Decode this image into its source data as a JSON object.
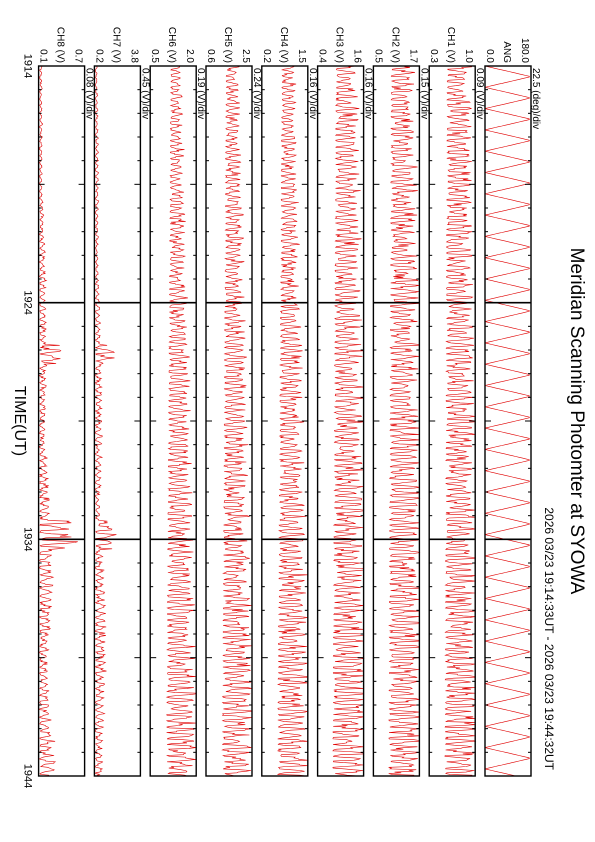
{
  "chart_data": {
    "type": "line",
    "title": "Meridian Scanning Photomter at SYOWA",
    "time_range": "2026 03/23 19:14:33UT - 2026 03/23 19:44:32UT",
    "xlabel": "TIME(UT)",
    "x_ticks": [
      "1914",
      "1924",
      "1934",
      "1944"
    ],
    "line_color": "#e00000",
    "grid_markers": true,
    "panels": [
      {
        "id": "ang",
        "scale_label": "22.5 (deg)/div",
        "unit": "ANG",
        "ylim": [
          0.0,
          180.0
        ],
        "ymin_label": "0.0",
        "ymax_label": "180.0",
        "min": 0.0,
        "max": 180.0,
        "amp_start": 1.0,
        "amp_end": 1.0,
        "period_min": 0.9,
        "burst": false
      },
      {
        "id": "ch1",
        "scale_label": "0.09 (V)/div",
        "unit": "CH1 (V)",
        "ylim": [
          0.3,
          1.0
        ],
        "ymin_label": "0.3",
        "ymax_label": "1.0",
        "min": 0.3,
        "max": 1.0,
        "amp_start": 0.55,
        "amp_end": 0.8,
        "period_min": 0.25,
        "burst": false
      },
      {
        "id": "ch2",
        "scale_label": "0.15 (V)/div",
        "unit": "CH2 (V)",
        "ylim": [
          0.5,
          1.7
        ],
        "ymin_label": "0.5",
        "ymax_label": "1.7",
        "min": 0.5,
        "max": 1.7,
        "amp_start": 0.55,
        "amp_end": 0.85,
        "period_min": 0.25,
        "burst": false
      },
      {
        "id": "ch3",
        "scale_label": "0.16 (V)/div",
        "unit": "CH3 (V)",
        "ylim": [
          0.4,
          1.6
        ],
        "ymin_label": "0.4",
        "ymax_label": "1.6",
        "min": 0.4,
        "max": 1.6,
        "amp_start": 0.5,
        "amp_end": 0.85,
        "period_min": 0.25,
        "burst": false
      },
      {
        "id": "ch4",
        "scale_label": "0.16 (V)/div",
        "unit": "CH4 (V)",
        "ylim": [
          0.2,
          1.5
        ],
        "ymin_label": "0.2",
        "ymax_label": "1.5",
        "min": 0.2,
        "max": 1.5,
        "amp_start": 0.3,
        "amp_end": 0.8,
        "period_min": 0.25,
        "burst": false
      },
      {
        "id": "ch5",
        "scale_label": "0.24 (V)/div",
        "unit": "CH5 (V)",
        "ylim": [
          0.6,
          2.5
        ],
        "ymin_label": "0.6",
        "ymax_label": "2.5",
        "min": 0.6,
        "max": 2.5,
        "amp_start": 0.3,
        "amp_end": 0.75,
        "period_min": 0.25,
        "burst": false
      },
      {
        "id": "ch6",
        "scale_label": "0.19 (V)/div",
        "unit": "CH6 (V)",
        "ylim": [
          0.5,
          2.0
        ],
        "ymin_label": "0.5",
        "ymax_label": "2.0",
        "min": 0.5,
        "max": 2.0,
        "amp_start": 0.25,
        "amp_end": 0.75,
        "period_min": 0.25,
        "burst": false
      },
      {
        "id": "ch7",
        "scale_label": "0.45 (V)/div",
        "unit": "CH7 (V)",
        "ylim": [
          0.2,
          3.8
        ],
        "ymin_label": "0.2",
        "ymax_label": "3.8",
        "min": 0.2,
        "max": 3.8,
        "amp_start": 0.04,
        "amp_end": 0.3,
        "period_min": 0.3,
        "burst": true
      },
      {
        "id": "ch8",
        "scale_label": "0.08 (V)/div",
        "unit": "CH8 (V)",
        "ylim": [
          0.1,
          0.7
        ],
        "ymin_label": "0.1",
        "ymax_label": "0.7",
        "min": 0.1,
        "max": 0.7,
        "amp_start": 0.05,
        "amp_end": 0.4,
        "period_min": 0.3,
        "burst": true
      }
    ]
  }
}
